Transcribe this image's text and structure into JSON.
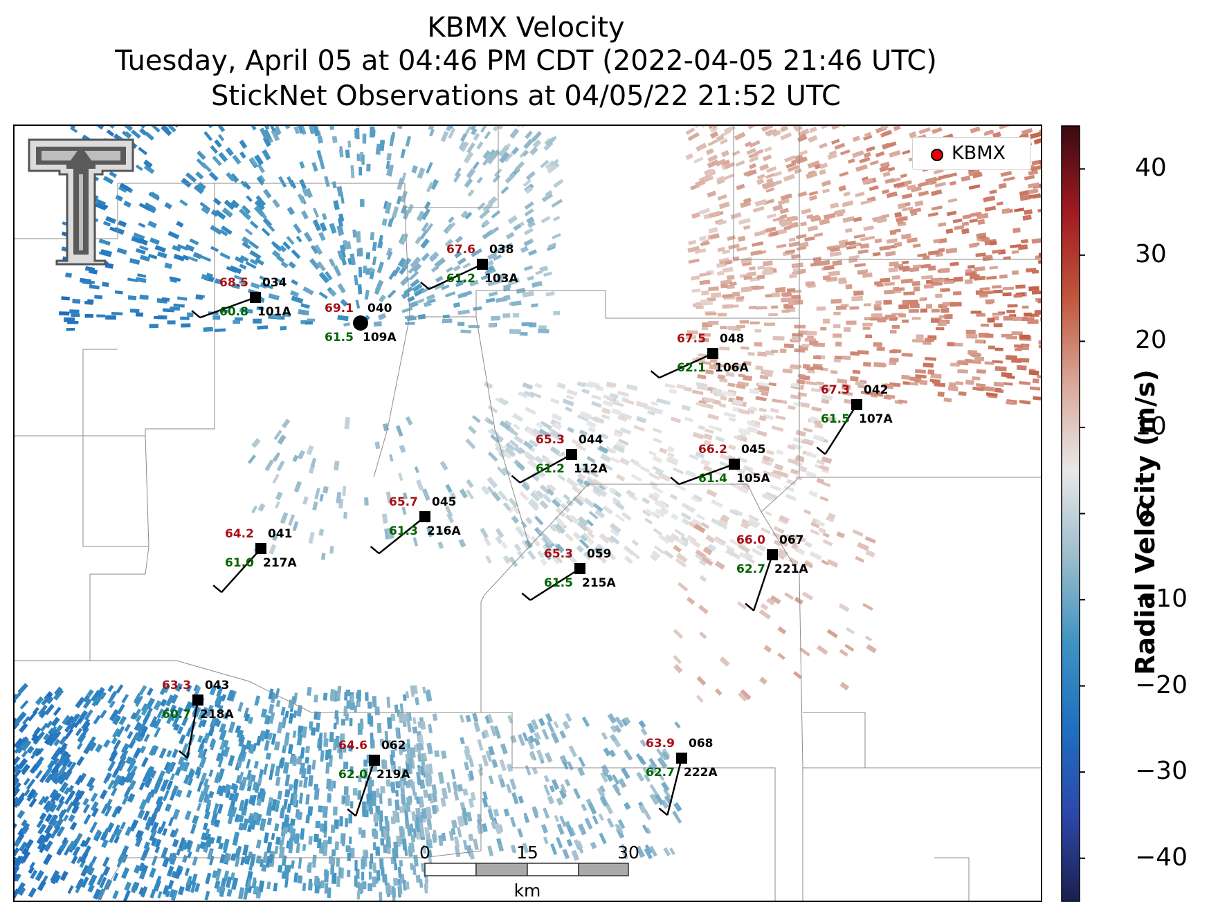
{
  "title": {
    "line1": "KBMX Velocity",
    "line2": "Tuesday, April 05 at 04:46 PM CDT (2022-04-05 21:46 UTC)",
    "line3": "StickNet Observations at 04/05/22 21:52 UTC"
  },
  "legend": {
    "label": "KBMX",
    "marker_color": "#e8000b"
  },
  "colorbar": {
    "label": "Radial Velocity (m/s)",
    "min": -45,
    "max": 45,
    "ticks": [
      "40",
      "30",
      "20",
      "10",
      "0",
      "−10",
      "−20",
      "−30",
      "−40"
    ],
    "colors": [
      "#1a1f4f",
      "#2d47a8",
      "#1f6fbf",
      "#3e93c2",
      "#9cbdcc",
      "#e8e8e8",
      "#d9a89a",
      "#c1573d",
      "#a11a21",
      "#3b0a10"
    ]
  },
  "scale_bar": {
    "labels": [
      "0",
      "15",
      "30"
    ],
    "unit": "km"
  },
  "logo": "texas-tech-double-t",
  "radar_site": {
    "name": "KBMX"
  },
  "stations": [
    {
      "id": "103A",
      "temp": "67.6",
      "dir": "038",
      "dew": "61.2"
    },
    {
      "id": "101A",
      "temp": "68.5",
      "dir": "034",
      "dew": "60.8"
    },
    {
      "id": "109A",
      "temp": "69.1",
      "dir": "040",
      "dew": "61.5"
    },
    {
      "id": "106A",
      "temp": "67.5",
      "dir": "048",
      "dew": "62.1"
    },
    {
      "id": "107A",
      "temp": "67.3",
      "dir": "042",
      "dew": "61.5"
    },
    {
      "id": "112A",
      "temp": "65.3",
      "dir": "044",
      "dew": "61.2"
    },
    {
      "id": "105A",
      "temp": "66.2",
      "dir": "045",
      "dew": "61.4"
    },
    {
      "id": "216A",
      "temp": "65.7",
      "dir": "045",
      "dew": "61.3"
    },
    {
      "id": "217A",
      "temp": "64.2",
      "dir": "041",
      "dew": "61.0"
    },
    {
      "id": "215A",
      "temp": "65.3",
      "dir": "059",
      "dew": "61.5"
    },
    {
      "id": "221A",
      "temp": "66.0",
      "dir": "067",
      "dew": "62.7"
    },
    {
      "id": "218A",
      "temp": "63.3",
      "dir": "043",
      "dew": "60.7"
    },
    {
      "id": "219A",
      "temp": "64.6",
      "dir": "062",
      "dew": "62.0"
    },
    {
      "id": "222A",
      "temp": "63.9",
      "dir": "068",
      "dew": "62.7"
    }
  ]
}
